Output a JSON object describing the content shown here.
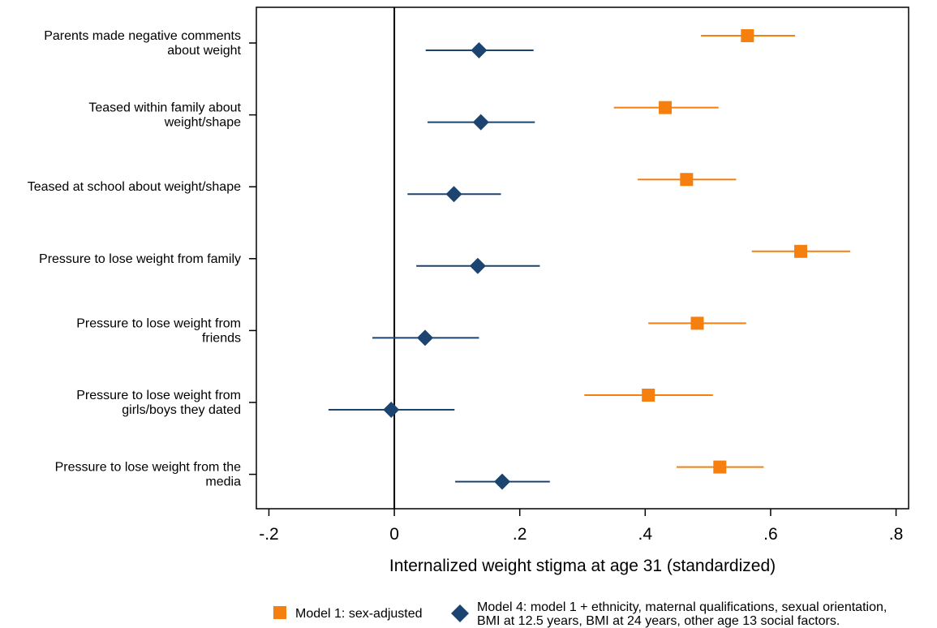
{
  "chart_data": {
    "type": "scatter",
    "subtype": "coefficient-plot",
    "xlabel": "Internalized weight stigma at age 31 (standardized)",
    "xlim": [
      -0.22,
      0.82
    ],
    "xticks": [
      -0.2,
      0,
      0.2,
      0.4,
      0.6,
      0.8
    ],
    "xtick_labels": [
      "-.2",
      "0",
      ".2",
      ".4",
      ".6",
      ".8"
    ],
    "reference_line_x": 0,
    "grid": false,
    "legend_position": "bottom",
    "categories": [
      [
        "Parents made negative comments",
        "about weight"
      ],
      [
        "Teased within family about",
        "weight/shape"
      ],
      [
        "Teased at school about weight/shape"
      ],
      [
        "Pressure to lose weight from family"
      ],
      [
        "Pressure to lose weight from",
        "friends"
      ],
      [
        "Pressure to lose weight from",
        "girls/boys they dated"
      ],
      [
        "Pressure to lose weight from the",
        "media"
      ]
    ],
    "series": [
      {
        "name": "Model 1: sex-adjusted",
        "legend_lines": [
          "Model 1: sex-adjusted"
        ],
        "color": "#f57f0f",
        "marker": "square",
        "points": [
          {
            "est": 0.563,
            "lo": 0.489,
            "hi": 0.639
          },
          {
            "est": 0.432,
            "lo": 0.35,
            "hi": 0.517
          },
          {
            "est": 0.466,
            "lo": 0.388,
            "hi": 0.545
          },
          {
            "est": 0.648,
            "lo": 0.57,
            "hi": 0.727
          },
          {
            "est": 0.483,
            "lo": 0.405,
            "hi": 0.561
          },
          {
            "est": 0.405,
            "lo": 0.303,
            "hi": 0.508
          },
          {
            "est": 0.519,
            "lo": 0.45,
            "hi": 0.589
          }
        ]
      },
      {
        "name": "Model 4: model 1 + ethnicity, maternal qualifications, sexual orientation, BMI at 12.5 years, BMI at 24 years, other age 13 social factors.",
        "legend_lines": [
          "Model 4: model 1 + ethnicity, maternal qualifications, sexual orientation,",
          "BMI at 12.5 years, BMI at 24 years, other age 13 social factors."
        ],
        "color": "#1c4470",
        "marker": "diamond",
        "points": [
          {
            "est": 0.135,
            "lo": 0.05,
            "hi": 0.222
          },
          {
            "est": 0.138,
            "lo": 0.053,
            "hi": 0.224
          },
          {
            "est": 0.095,
            "lo": 0.021,
            "hi": 0.17
          },
          {
            "est": 0.133,
            "lo": 0.035,
            "hi": 0.232
          },
          {
            "est": 0.049,
            "lo": -0.035,
            "hi": 0.135
          },
          {
            "est": -0.005,
            "lo": -0.105,
            "hi": 0.096
          },
          {
            "est": 0.172,
            "lo": 0.097,
            "hi": 0.248
          }
        ]
      }
    ]
  }
}
